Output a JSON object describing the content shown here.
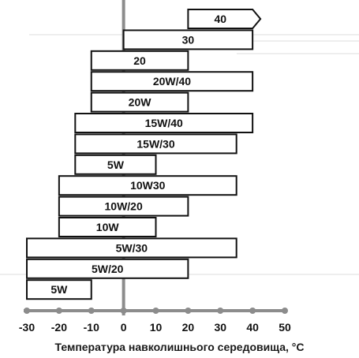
{
  "chart_data": {
    "type": "bar",
    "orientation": "horizontal-range",
    "xlabel": "Температура навколишнього середовища, °C",
    "xlim": [
      -30,
      50
    ],
    "xticks": [
      -30,
      -20,
      -10,
      0,
      10,
      20,
      30,
      40,
      50
    ],
    "ranges": [
      {
        "label": "40",
        "min": 20,
        "max": 40,
        "open_end": true
      },
      {
        "label": "30",
        "min": 0,
        "max": 40
      },
      {
        "label": "20",
        "min": -10,
        "max": 20
      },
      {
        "label": "20W/40",
        "min": -10,
        "max": 40
      },
      {
        "label": "20W",
        "min": -10,
        "max": 20
      },
      {
        "label": "15W/40",
        "min": -15,
        "max": 40
      },
      {
        "label": "15W/30",
        "min": -15,
        "max": 35
      },
      {
        "label": "5W",
        "min": -15,
        "max": 10
      },
      {
        "label": "10W30",
        "min": -20,
        "max": 35
      },
      {
        "label": "10W/20",
        "min": -20,
        "max": 20
      },
      {
        "label": "10W",
        "min": -20,
        "max": 10
      },
      {
        "label": "5W/30",
        "min": -30,
        "max": 35
      },
      {
        "label": "5W/20",
        "min": -30,
        "max": 20
      },
      {
        "label": "5W",
        "min": -30,
        "max": -10
      }
    ],
    "colors": {
      "bar_fill": "#ffffff",
      "bar_stroke": "#111111",
      "axis": "#8c8c8c",
      "guides": "#dcdcdc"
    }
  }
}
